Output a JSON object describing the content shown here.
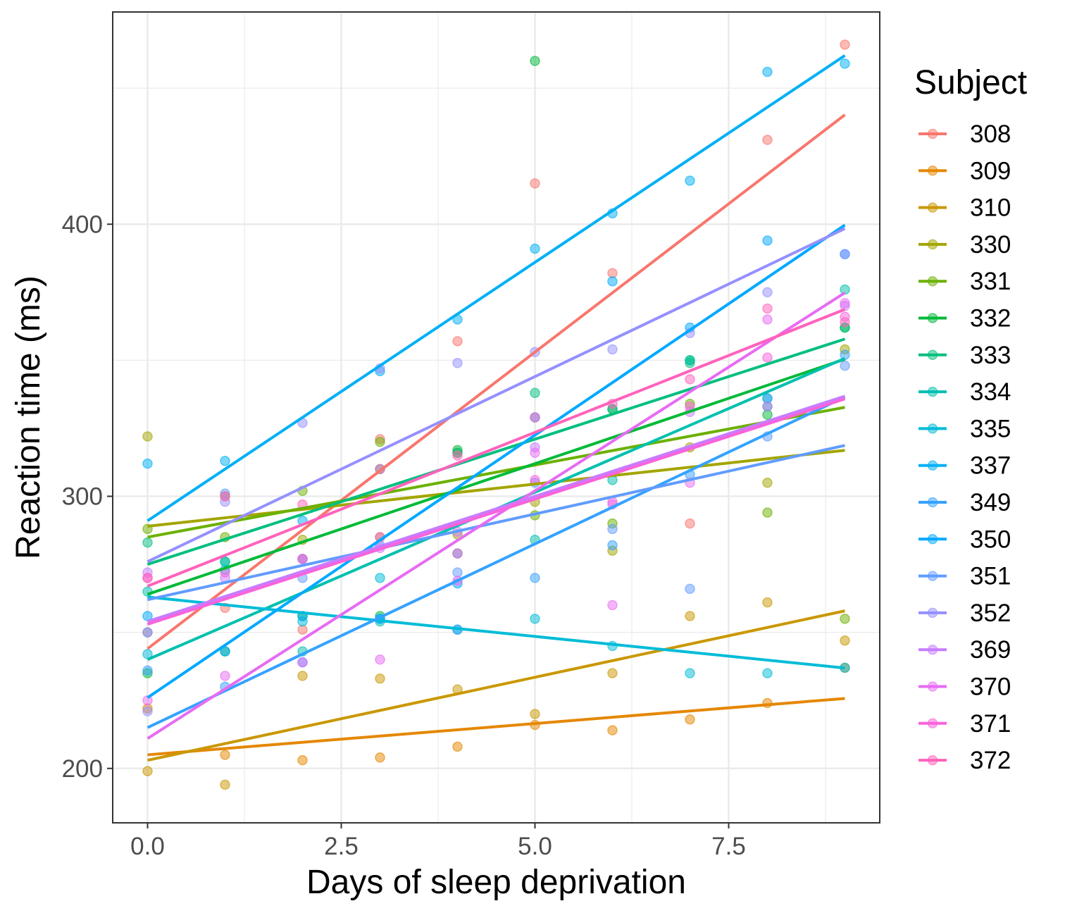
{
  "chart_data": {
    "type": "scatter",
    "xlabel": "Days of sleep deprivation",
    "ylabel": "Reaction time (ms)",
    "xlim": [
      -0.45,
      9.45
    ],
    "ylim": [
      180,
      478
    ],
    "x_ticks": [
      0,
      2.5,
      5,
      7.5
    ],
    "x_tick_labels": [
      "0.0",
      "2.5",
      "5.0",
      "7.5"
    ],
    "y_ticks": [
      200,
      300,
      400
    ],
    "y_tick_labels": [
      "200",
      "300",
      "400"
    ],
    "grid": true,
    "legend_title": "Subject",
    "legend_position": "right",
    "series": [
      {
        "name": "308",
        "color": "#F8766D",
        "intercept": 244,
        "slope": 21.8,
        "y": [
          250,
          259,
          251,
          321,
          357,
          415,
          382,
          290,
          431,
          466
        ]
      },
      {
        "name": "309",
        "color": "#E58700",
        "intercept": 205,
        "slope": 2.3,
        "y": [
          222,
          205,
          203,
          204,
          208,
          216,
          214,
          218,
          224,
          237
        ]
      },
      {
        "name": "310",
        "color": "#C99800",
        "intercept": 203,
        "slope": 6.1,
        "y": [
          199,
          194,
          234,
          233,
          229,
          220,
          235,
          256,
          261,
          247
        ]
      },
      {
        "name": "330",
        "color": "#A3A500",
        "intercept": 289,
        "slope": 3.1,
        "y": [
          322,
          300,
          284,
          285,
          286,
          298,
          280,
          318,
          305,
          354
        ]
      },
      {
        "name": "331",
        "color": "#6BB100",
        "intercept": 285,
        "slope": 5.3,
        "y": [
          288,
          285,
          302,
          320,
          316,
          293,
          290,
          334,
          294,
          255
        ]
      },
      {
        "name": "332",
        "color": "#00BA38",
        "intercept": 264,
        "slope": 9.6,
        "y": [
          235,
          243,
          256,
          256,
          317,
          460,
          332,
          350,
          330,
          362
        ]
      },
      {
        "name": "333",
        "color": "#00BF7D",
        "intercept": 275,
        "slope": 9.2,
        "y": [
          283,
          276,
          277,
          310,
          316,
          338,
          332,
          349,
          333,
          362
        ]
      },
      {
        "name": "334",
        "color": "#00C0AF",
        "intercept": 240,
        "slope": 12.3,
        "y": [
          265,
          276,
          243,
          254,
          279,
          284,
          306,
          350,
          336,
          376
        ]
      },
      {
        "name": "335",
        "color": "#00BCD8",
        "intercept": 263,
        "slope": -2.9,
        "y": [
          242,
          273,
          254,
          270,
          251,
          255,
          245,
          235,
          235,
          237
        ]
      },
      {
        "name": "337",
        "color": "#00B0F6",
        "intercept": 291,
        "slope": 19.0,
        "y": [
          312,
          313,
          291,
          346,
          365,
          391,
          404,
          416,
          456,
          459
        ]
      },
      {
        "name": "349",
        "color": "#35A2FF",
        "intercept": 215,
        "slope": 13.5,
        "y": [
          236,
          230,
          239,
          255,
          251,
          270,
          282,
          308,
          336,
          352
        ]
      },
      {
        "name": "350",
        "color": "#00A9FF",
        "intercept": 226,
        "slope": 19.3,
        "y": [
          256,
          243,
          256,
          255,
          268,
          329,
          379,
          362,
          394,
          389
        ]
      },
      {
        "name": "351",
        "color": "#619CFF",
        "intercept": 262,
        "slope": 6.3,
        "y": [
          250,
          301,
          270,
          282,
          272,
          305,
          288,
          266,
          322,
          348
        ]
      },
      {
        "name": "352",
        "color": "#9590FF",
        "intercept": 276,
        "slope": 13.6,
        "y": [
          221,
          298,
          327,
          347,
          349,
          353,
          354,
          360,
          375,
          389
        ]
      },
      {
        "name": "369",
        "color": "#C77CFF",
        "intercept": 254,
        "slope": 9.2,
        "y": [
          272,
          270,
          277,
          281,
          287,
          318,
          297,
          331,
          333,
          370
        ]
      },
      {
        "name": "370",
        "color": "#E76BF3",
        "intercept": 211,
        "slope": 18.2,
        "y": [
          225,
          234,
          239,
          240,
          269,
          316,
          260,
          305,
          365,
          371
        ]
      },
      {
        "name": "371",
        "color": "#FA62DB",
        "intercept": 253,
        "slope": 9.2,
        "y": [
          270,
          272,
          277,
          285,
          279,
          306,
          298,
          333,
          351,
          366
        ]
      },
      {
        "name": "372",
        "color": "#FF62BC",
        "intercept": 267,
        "slope": 11.3,
        "y": [
          270,
          300,
          297,
          310,
          315,
          329,
          334,
          343,
          369,
          364
        ]
      }
    ]
  }
}
